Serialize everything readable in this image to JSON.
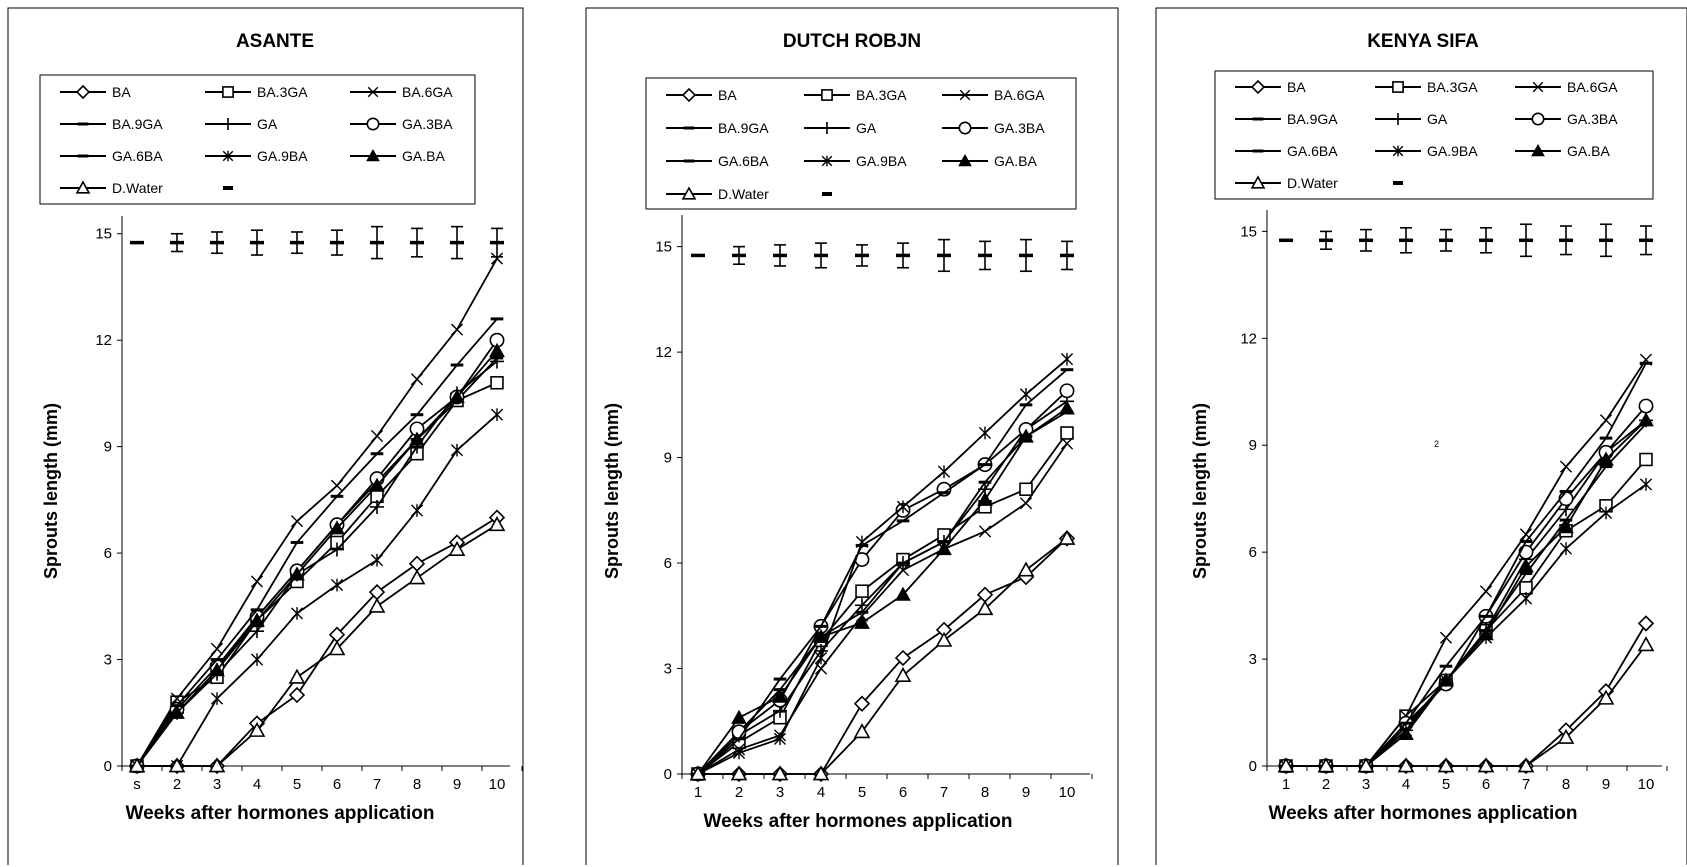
{
  "chart_data": [
    {
      "type": "line",
      "title": "ASANTE",
      "xlabel": "Weeks after hormones application",
      "ylabel": "Sprouts length (mm)",
      "categories": [
        "s",
        "2",
        "3",
        "4",
        "5",
        "6",
        "7",
        "8",
        "9",
        "10"
      ],
      "yticks": [
        "0",
        "3",
        "6",
        "9",
        "12",
        "15"
      ],
      "ylim": [
        0,
        15.5
      ],
      "grid": false,
      "legend_position": "top",
      "error_bar_level": 14.75,
      "error_bar_half": [
        0,
        0.25,
        0.3,
        0.35,
        0.3,
        0.35,
        0.45,
        0.4,
        0.45,
        0.4
      ],
      "series": [
        {
          "name": "BA",
          "marker": "diamond",
          "values": [
            0,
            0,
            0,
            1.2,
            2.0,
            3.7,
            4.9,
            5.7,
            6.3,
            7.0
          ]
        },
        {
          "name": "BA.3GA",
          "marker": "square",
          "values": [
            0,
            1.8,
            2.5,
            4.1,
            5.2,
            6.3,
            7.6,
            8.8,
            10.3,
            10.8
          ]
        },
        {
          "name": "BA.6GA",
          "marker": "x",
          "values": [
            0,
            1.9,
            3.3,
            5.2,
            6.9,
            7.9,
            9.3,
            10.9,
            12.3,
            14.3
          ]
        },
        {
          "name": "BA.9GA",
          "marker": "dash",
          "values": [
            0,
            1.5,
            2.7,
            4.2,
            5.5,
            6.8,
            8.0,
            9.2,
            10.3,
            11.5
          ]
        },
        {
          "name": "GA",
          "marker": "plus",
          "values": [
            0,
            1.5,
            2.6,
            3.8,
            5.4,
            6.1,
            7.3,
            9.0,
            10.5,
            11.4
          ]
        },
        {
          "name": "GA.3BA",
          "marker": "circle",
          "values": [
            0,
            1.6,
            2.8,
            4.2,
            5.5,
            6.8,
            8.1,
            9.5,
            10.4,
            12.0
          ]
        },
        {
          "name": "GA.6BA",
          "marker": "dash",
          "values": [
            0,
            1.7,
            3.0,
            4.4,
            6.3,
            7.6,
            8.8,
            9.9,
            11.3,
            12.6
          ]
        },
        {
          "name": "GA.9BA",
          "marker": "asterisk",
          "values": [
            0,
            0,
            1.9,
            3.0,
            4.3,
            5.1,
            5.8,
            7.2,
            8.9,
            9.9
          ]
        },
        {
          "name": "GA.BA",
          "marker": "triangle-filled",
          "values": [
            0,
            1.5,
            2.7,
            4.1,
            5.4,
            6.7,
            7.9,
            9.2,
            10.4,
            11.7
          ]
        },
        {
          "name": "D.Water",
          "marker": "triangle",
          "values": [
            0,
            0,
            0,
            1.0,
            2.5,
            3.3,
            4.5,
            5.3,
            6.1,
            6.8
          ]
        }
      ]
    },
    {
      "type": "line",
      "title": "DUTCH ROBJN",
      "xlabel": "Weeks after hormones application",
      "ylabel": "Sprouts length (mm)",
      "categories": [
        "1",
        "2",
        "3",
        "4",
        "5",
        "6",
        "7",
        "8",
        "9",
        "10"
      ],
      "yticks": [
        "0",
        "3",
        "6",
        "9",
        "12",
        "15"
      ],
      "ylim": [
        0,
        15.9
      ],
      "grid": false,
      "legend_position": "top",
      "error_bar_level": 14.75,
      "error_bar_half": [
        0,
        0.25,
        0.3,
        0.35,
        0.3,
        0.35,
        0.45,
        0.4,
        0.45,
        0.4
      ],
      "series": [
        {
          "name": "BA",
          "marker": "diamond",
          "values": [
            0,
            0,
            0,
            0,
            2.0,
            3.3,
            4.1,
            5.1,
            5.6,
            6.7
          ]
        },
        {
          "name": "BA.3GA",
          "marker": "square",
          "values": [
            0,
            0.9,
            1.6,
            3.8,
            5.2,
            6.1,
            6.8,
            7.6,
            8.1,
            9.7
          ]
        },
        {
          "name": "BA.6GA",
          "marker": "x",
          "values": [
            0,
            0.7,
            1.1,
            3.0,
            4.5,
            5.8,
            6.4,
            6.9,
            7.7,
            9.4
          ]
        },
        {
          "name": "BA.9GA",
          "marker": "dash",
          "values": [
            0,
            1.2,
            2.4,
            3.9,
            4.6,
            6.0,
            6.6,
            8.3,
            9.6,
            10.3
          ]
        },
        {
          "name": "GA",
          "marker": "plus",
          "values": [
            0,
            1.1,
            1.8,
            3.5,
            4.8,
            6.0,
            6.6,
            8.1,
            9.8,
            10.6
          ]
        },
        {
          "name": "GA.3BA",
          "marker": "circle",
          "values": [
            0,
            1.2,
            2.1,
            4.2,
            6.1,
            7.5,
            8.1,
            8.8,
            9.8,
            10.9
          ]
        },
        {
          "name": "GA.6BA",
          "marker": "dash",
          "values": [
            0,
            1.0,
            2.7,
            4.2,
            6.5,
            7.2,
            8.0,
            8.8,
            10.5,
            11.5
          ]
        },
        {
          "name": "GA.9BA",
          "marker": "asterisk",
          "values": [
            0,
            0.6,
            1.0,
            3.3,
            6.6,
            7.6,
            8.6,
            9.7,
            10.8,
            11.8
          ]
        },
        {
          "name": "GA.BA",
          "marker": "triangle-filled",
          "values": [
            0,
            1.6,
            2.2,
            3.9,
            4.3,
            5.1,
            6.4,
            7.8,
            9.6,
            10.4
          ]
        },
        {
          "name": "D.Water",
          "marker": "triangle",
          "values": [
            0,
            0,
            0,
            0,
            1.2,
            2.8,
            3.8,
            4.7,
            5.8,
            6.7
          ]
        }
      ]
    },
    {
      "type": "line",
      "title": "KENYA SIFA",
      "xlabel": "Weeks after hormones application",
      "ylabel": "Sprouts length (mm)",
      "categories": [
        "1",
        "2",
        "3",
        "4",
        "5",
        "6",
        "7",
        "8",
        "9",
        "10"
      ],
      "yticks": [
        "0",
        "3",
        "6",
        "9",
        "12",
        "15"
      ],
      "ylim": [
        0,
        15.6
      ],
      "grid": false,
      "legend_position": "top",
      "stray_label": "2",
      "error_bar_level": 14.75,
      "error_bar_half": [
        0,
        0.25,
        0.3,
        0.35,
        0.3,
        0.35,
        0.45,
        0.4,
        0.45,
        0.4
      ],
      "series": [
        {
          "name": "BA",
          "marker": "diamond",
          "values": [
            0,
            0,
            0,
            0,
            0,
            0,
            0,
            1.0,
            2.1,
            4.0
          ]
        },
        {
          "name": "BA.3GA",
          "marker": "square",
          "values": [
            0,
            0,
            0,
            1.4,
            2.4,
            3.8,
            5.0,
            6.6,
            7.3,
            8.6
          ]
        },
        {
          "name": "BA.6GA",
          "marker": "x",
          "values": [
            0,
            0,
            0,
            1.4,
            3.6,
            4.9,
            6.5,
            8.4,
            9.7,
            11.4
          ]
        },
        {
          "name": "BA.9GA",
          "marker": "dash",
          "values": [
            0,
            0,
            0,
            1.1,
            2.4,
            3.8,
            5.4,
            6.9,
            8.4,
            9.6
          ]
        },
        {
          "name": "GA",
          "marker": "plus",
          "values": [
            0,
            0,
            0,
            1.0,
            2.4,
            3.8,
            5.8,
            7.2,
            8.8,
            9.7
          ]
        },
        {
          "name": "GA.3BA",
          "marker": "circle",
          "values": [
            0,
            0,
            0,
            1.2,
            2.3,
            4.2,
            6.0,
            7.5,
            8.8,
            10.1
          ]
        },
        {
          "name": "GA.6BA",
          "marker": "dash",
          "values": [
            0,
            0,
            0,
            1.2,
            2.8,
            4.2,
            6.3,
            7.7,
            9.2,
            11.3
          ]
        },
        {
          "name": "GA.9BA",
          "marker": "asterisk",
          "values": [
            0,
            0,
            0,
            1.0,
            2.4,
            3.6,
            4.7,
            6.1,
            7.1,
            7.9
          ]
        },
        {
          "name": "GA.BA",
          "marker": "triangle-filled",
          "values": [
            0,
            0,
            0,
            0.9,
            2.4,
            3.7,
            5.6,
            6.7,
            8.6,
            9.7
          ]
        },
        {
          "name": "D.Water",
          "marker": "triangle",
          "values": [
            0,
            0,
            0,
            0,
            0,
            0,
            0,
            0.8,
            1.9,
            3.4
          ]
        }
      ]
    }
  ]
}
